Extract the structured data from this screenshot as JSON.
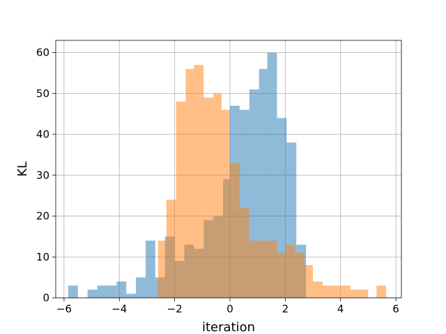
{
  "chart_data": {
    "type": "bar",
    "xlabel": "iteration",
    "ylabel": "KL",
    "xlim": [
      -6.3,
      6.2
    ],
    "ylim": [
      0,
      63
    ],
    "grid": true,
    "xticks": [
      -6,
      -4,
      -2,
      0,
      2,
      4,
      6
    ],
    "yticks": [
      0,
      10,
      20,
      30,
      40,
      50,
      60
    ],
    "series": [
      {
        "color": "#1f77b4",
        "opacity": 0.5,
        "bins": [
          [
            -5.85,
            -5.5,
            3
          ],
          [
            -5.5,
            -5.15,
            0
          ],
          [
            -5.15,
            -4.8,
            2
          ],
          [
            -4.8,
            -4.45,
            3
          ],
          [
            -4.45,
            -4.1,
            3
          ],
          [
            -4.1,
            -3.75,
            4
          ],
          [
            -3.75,
            -3.4,
            1
          ],
          [
            -3.4,
            -3.05,
            5
          ],
          [
            -3.05,
            -2.7,
            14
          ],
          [
            -2.7,
            -2.35,
            5
          ],
          [
            -2.35,
            -2.0,
            15
          ],
          [
            -2.0,
            -1.65,
            9
          ],
          [
            -1.65,
            -1.3,
            13
          ],
          [
            -1.3,
            -0.95,
            12
          ],
          [
            -0.95,
            -0.6,
            19
          ],
          [
            -0.6,
            -0.25,
            20
          ],
          [
            -0.25,
            0.0,
            29
          ],
          [
            0.0,
            0.35,
            47
          ],
          [
            0.35,
            0.7,
            46
          ],
          [
            0.7,
            1.05,
            51
          ],
          [
            1.05,
            1.35,
            56
          ],
          [
            1.35,
            1.7,
            60
          ],
          [
            1.7,
            2.05,
            44
          ],
          [
            2.05,
            2.4,
            38
          ],
          [
            2.4,
            2.75,
            13
          ]
        ]
      },
      {
        "color": "#ff7f0e",
        "opacity": 0.5,
        "bins": [
          [
            -2.6,
            -2.3,
            14
          ],
          [
            -2.3,
            -1.95,
            24
          ],
          [
            -1.95,
            -1.6,
            48
          ],
          [
            -1.6,
            -1.3,
            56
          ],
          [
            -1.3,
            -0.95,
            57
          ],
          [
            -0.95,
            -0.6,
            49
          ],
          [
            -0.6,
            -0.3,
            50
          ],
          [
            -0.3,
            0.0,
            46
          ],
          [
            0.0,
            0.35,
            33
          ],
          [
            0.35,
            0.7,
            22
          ],
          [
            0.7,
            1.0,
            14
          ],
          [
            1.0,
            1.35,
            14
          ],
          [
            1.35,
            1.7,
            14
          ],
          [
            1.7,
            2.0,
            11
          ],
          [
            2.0,
            2.35,
            13
          ],
          [
            2.35,
            2.7,
            11
          ],
          [
            2.7,
            3.0,
            8
          ],
          [
            3.0,
            3.35,
            4
          ],
          [
            3.35,
            3.7,
            3
          ],
          [
            3.7,
            4.0,
            3
          ],
          [
            4.0,
            4.35,
            3
          ],
          [
            4.35,
            4.7,
            2
          ],
          [
            4.7,
            5.0,
            2
          ],
          [
            5.0,
            5.3,
            0
          ],
          [
            5.3,
            5.65,
            3
          ]
        ]
      }
    ]
  }
}
